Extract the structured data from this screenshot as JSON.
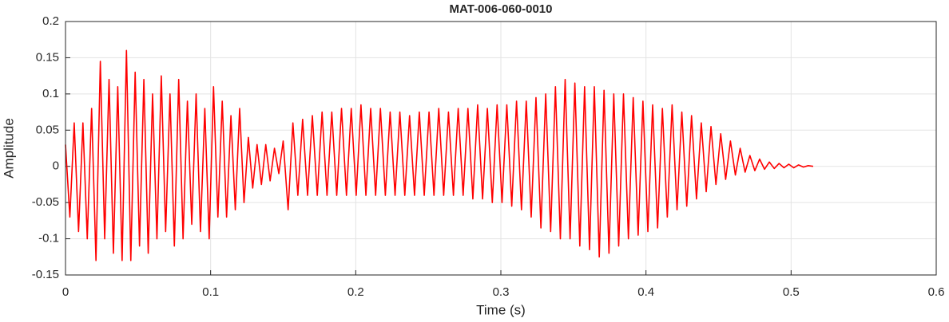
{
  "chart_data": {
    "type": "line",
    "title": "MAT-006-060-0010",
    "x_label": "Time (s)",
    "y_label": "Amplitude",
    "color": "#ff0000",
    "grid": true,
    "xlim": [
      0,
      0.6
    ],
    "xticks": [
      0,
      0.1,
      0.2,
      0.3,
      0.4,
      0.5,
      0.6
    ],
    "ylim": [
      -0.15,
      0.2
    ],
    "yticks": [
      -0.15,
      -0.1,
      -0.05,
      0,
      0.05,
      0.1,
      0.15,
      0.2
    ],
    "x": [
      0,
      0.003,
      0.006,
      0.009,
      0.012,
      0.015,
      0.018,
      0.021,
      0.024,
      0.027,
      0.03,
      0.033,
      0.036,
      0.039,
      0.042,
      0.045,
      0.048,
      0.051,
      0.054,
      0.057,
      0.06,
      0.063,
      0.066,
      0.069,
      0.072,
      0.075,
      0.078,
      0.081,
      0.084,
      0.087,
      0.09,
      0.093,
      0.096,
      0.099,
      0.102,
      0.105,
      0.108,
      0.111,
      0.114,
      0.117,
      0.12,
      0.123,
      0.126,
      0.129,
      0.132,
      0.135,
      0.138,
      0.141,
      0.144,
      0.147,
      0.15,
      0.1534,
      0.1567,
      0.1601,
      0.1634,
      0.1668,
      0.1701,
      0.1735,
      0.1768,
      0.1802,
      0.1835,
      0.1869,
      0.1902,
      0.1936,
      0.1969,
      0.2003,
      0.2036,
      0.207,
      0.2103,
      0.2137,
      0.217,
      0.2204,
      0.2237,
      0.2271,
      0.2304,
      0.2338,
      0.2371,
      0.2405,
      0.2438,
      0.2472,
      0.2505,
      0.2539,
      0.2572,
      0.2606,
      0.2639,
      0.2673,
      0.2706,
      0.274,
      0.2773,
      0.2807,
      0.284,
      0.2874,
      0.2907,
      0.2941,
      0.2974,
      0.3008,
      0.3041,
      0.3075,
      0.3108,
      0.3142,
      0.3175,
      0.3209,
      0.3242,
      0.3276,
      0.3309,
      0.3343,
      0.3376,
      0.341,
      0.3443,
      0.3477,
      0.351,
      0.3544,
      0.3577,
      0.3611,
      0.3644,
      0.3678,
      0.3711,
      0.3745,
      0.3778,
      0.3812,
      0.3845,
      0.3879,
      0.3912,
      0.3946,
      0.3979,
      0.4013,
      0.4046,
      0.408,
      0.4113,
      0.4147,
      0.418,
      0.4214,
      0.4247,
      0.4281,
      0.4314,
      0.4348,
      0.4381,
      0.4415,
      0.4448,
      0.4482,
      0.4515,
      0.4549,
      0.4582,
      0.4616,
      0.4649,
      0.4683,
      0.4716,
      0.475,
      0.4783,
      0.4817,
      0.485,
      0.4884,
      0.4917,
      0.4951,
      0.4984,
      0.5018,
      0.5051,
      0.5085,
      0.5118,
      0.5152
    ],
    "values": [
      0.03,
      -0.07,
      0.06,
      -0.09,
      0.06,
      -0.1,
      0.08,
      -0.13,
      0.145,
      -0.1,
      0.12,
      -0.12,
      0.11,
      -0.13,
      0.16,
      -0.13,
      0.13,
      -0.11,
      0.12,
      -0.12,
      0.1,
      -0.1,
      0.125,
      -0.09,
      0.1,
      -0.11,
      0.12,
      -0.1,
      0.09,
      -0.08,
      0.1,
      -0.09,
      0.08,
      -0.1,
      0.11,
      -0.07,
      0.09,
      -0.07,
      0.07,
      -0.06,
      0.08,
      -0.05,
      0.04,
      -0.03,
      0.03,
      -0.025,
      0.03,
      -0.02,
      0.025,
      -0.01,
      0.035,
      -0.06,
      0.06,
      -0.04,
      0.065,
      -0.04,
      0.07,
      -0.04,
      0.075,
      -0.04,
      0.075,
      -0.04,
      0.08,
      -0.04,
      0.08,
      -0.04,
      0.085,
      -0.04,
      0.08,
      -0.04,
      0.08,
      -0.04,
      0.075,
      -0.04,
      0.075,
      -0.04,
      0.07,
      -0.04,
      0.075,
      -0.04,
      0.075,
      -0.04,
      0.08,
      -0.04,
      0.075,
      -0.04,
      0.08,
      -0.04,
      0.08,
      -0.045,
      0.085,
      -0.045,
      0.08,
      -0.05,
      0.085,
      -0.05,
      0.085,
      -0.055,
      0.09,
      -0.06,
      0.09,
      -0.07,
      0.095,
      -0.085,
      0.1,
      -0.09,
      0.11,
      -0.1,
      0.12,
      -0.1,
      0.115,
      -0.11,
      0.11,
      -0.115,
      0.11,
      -0.125,
      0.105,
      -0.12,
      0.1,
      -0.11,
      0.1,
      -0.1,
      0.095,
      -0.095,
      0.09,
      -0.09,
      0.085,
      -0.085,
      0.08,
      -0.07,
      0.085,
      -0.06,
      0.075,
      -0.055,
      0.07,
      -0.045,
      0.06,
      -0.035,
      0.055,
      -0.025,
      0.045,
      -0.018,
      0.035,
      -0.012,
      0.025,
      -0.008,
      0.015,
      -0.006,
      0.01,
      -0.004,
      0.006,
      -0.003,
      0.004,
      -0.002,
      0.003,
      -0.002,
      0.002,
      -0.001,
      0.001,
      0
    ]
  }
}
